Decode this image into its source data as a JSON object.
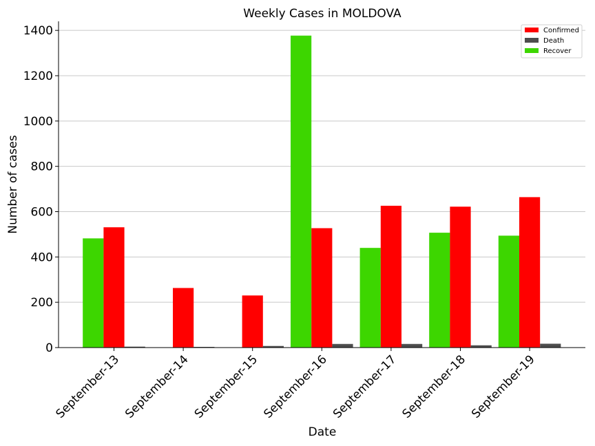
{
  "chart_data": {
    "type": "bar",
    "title": "Weekly Cases in MOLDOVA",
    "xlabel": "Date",
    "ylabel": "Number of cases",
    "categories": [
      "September-13",
      "September-14",
      "September-15",
      "September-16",
      "September-17",
      "September-18",
      "September-19"
    ],
    "ylim": [
      0,
      1440
    ],
    "yticks": [
      0,
      200,
      400,
      600,
      800,
      1000,
      1200,
      1400
    ],
    "grid": "horizontal",
    "legend_position": "top-right",
    "series": [
      {
        "name": "Recover",
        "color": "#3dd600",
        "values": [
          482,
          0,
          0,
          1377,
          440,
          507,
          494
        ]
      },
      {
        "name": "Confirmed",
        "color": "#ff0000",
        "values": [
          531,
          263,
          230,
          527,
          626,
          622,
          664
        ]
      },
      {
        "name": "Death",
        "color": "#4d4d4d",
        "values": [
          4,
          3,
          7,
          16,
          16,
          10,
          17
        ]
      }
    ],
    "legend_order": [
      "Confirmed",
      "Death",
      "Recover"
    ]
  }
}
